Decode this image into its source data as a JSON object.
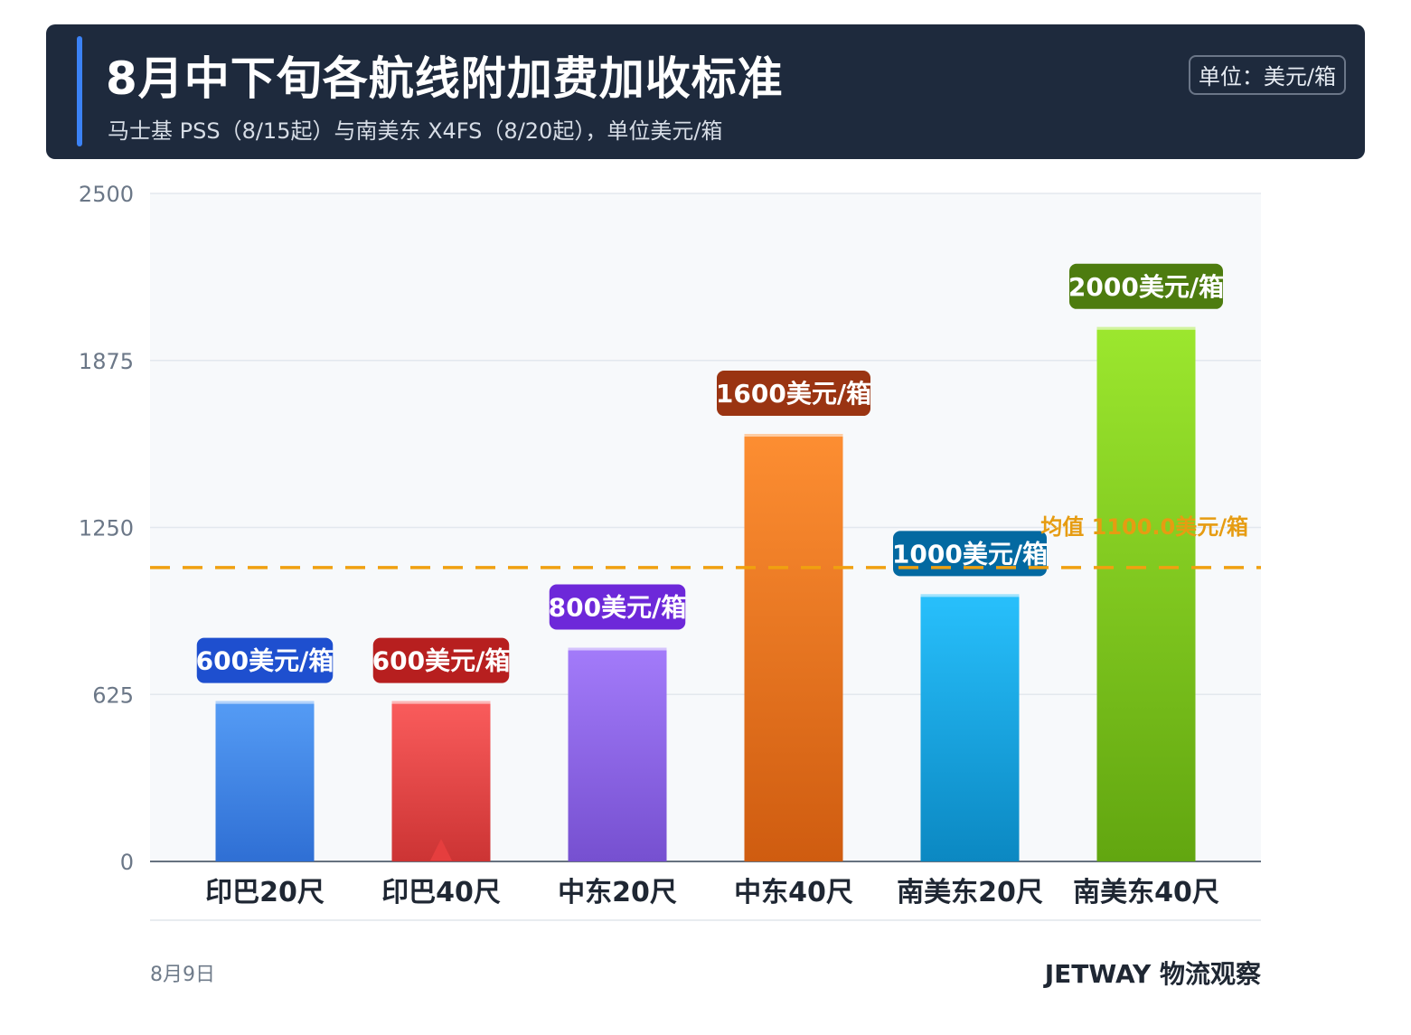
{
  "header": {
    "title": "8月中下旬各航线附加费加收标准",
    "subtitle": "马士基 PSS（8/15起）与南美东 X4FS（8/20起），单位美元/箱",
    "unit_badge": "单位：美元/箱"
  },
  "chart_data": {
    "type": "bar",
    "title": "8月中下旬各航线附加费加收标准",
    "categories": [
      "印巴20尺",
      "印巴40尺",
      "中东20尺",
      "中东40尺",
      "南美东20尺",
      "南美东40尺"
    ],
    "values": [
      600,
      600,
      800,
      1600,
      1000,
      2000
    ],
    "value_labels": [
      "600美元/箱",
      "600美元/箱",
      "800美元/箱",
      "1600美元/箱",
      "1000美元/箱",
      "2000美元/箱"
    ],
    "bar_colors": [
      [
        "#559cf5",
        "#2f6fd4"
      ],
      [
        "#fa5c5c",
        "#cc3434"
      ],
      [
        "#a37bfa",
        "#7650d0"
      ],
      [
        "#fd8e32",
        "#cf5c10"
      ],
      [
        "#28c0fc",
        "#0b88c2"
      ],
      [
        "#9ce72e",
        "#62a610"
      ]
    ],
    "label_colors": [
      "#1e4fcf",
      "#b71f1f",
      "#6d28d9",
      "#9a3412",
      "#0369a1",
      "#4d7c0f"
    ],
    "ylim": [
      0,
      2500
    ],
    "yticks": [
      "0",
      "625",
      "1250",
      "1875",
      "2500"
    ],
    "grid": true,
    "average": {
      "value": 1100,
      "label": "均值 1100.0美元/箱",
      "color": "#f0a010"
    },
    "marker": {
      "category_index": 1,
      "color": "#e53e3e"
    }
  },
  "footer": {
    "date": "8月9日",
    "brand": "JETWAY 物流观察"
  }
}
